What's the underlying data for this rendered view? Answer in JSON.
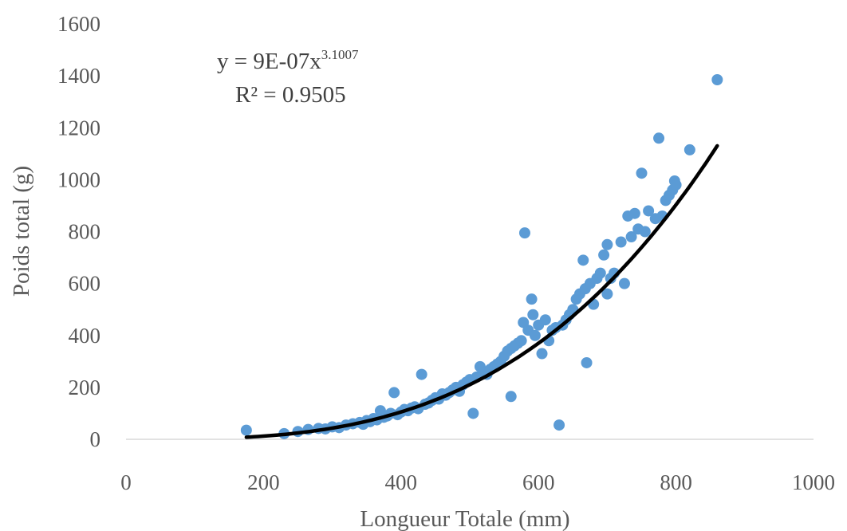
{
  "chart_data": {
    "type": "scatter",
    "title": "",
    "xlabel": "Longueur  Totale (mm)",
    "ylabel": "Poids total (g)",
    "xlim": [
      0,
      1000
    ],
    "ylim": [
      0,
      1600
    ],
    "xticks": [
      0,
      200,
      400,
      600,
      800,
      1000
    ],
    "yticks": [
      0,
      200,
      400,
      600,
      800,
      1000,
      1200,
      1400,
      1600
    ],
    "grid": false,
    "marker_color": "#5B9BD5",
    "trend_color": "#000000",
    "axis_color": "#D9D9D9",
    "trendline": {
      "type": "power",
      "coefficient": 9e-07,
      "exponent": 3.1007,
      "x_range": [
        175,
        860
      ],
      "equation_main": "y = 9E-07x",
      "equation_exponent": "3.1007",
      "r2_label": "R² = 0.9505"
    },
    "points": [
      [
        175,
        35
      ],
      [
        230,
        22
      ],
      [
        250,
        30
      ],
      [
        265,
        38
      ],
      [
        280,
        42
      ],
      [
        290,
        40
      ],
      [
        300,
        48
      ],
      [
        310,
        45
      ],
      [
        320,
        55
      ],
      [
        330,
        60
      ],
      [
        340,
        65
      ],
      [
        345,
        58
      ],
      [
        350,
        72
      ],
      [
        355,
        68
      ],
      [
        360,
        80
      ],
      [
        365,
        75
      ],
      [
        370,
        110
      ],
      [
        375,
        85
      ],
      [
        380,
        90
      ],
      [
        385,
        100
      ],
      [
        390,
        180
      ],
      [
        395,
        95
      ],
      [
        400,
        105
      ],
      [
        405,
        115
      ],
      [
        410,
        110
      ],
      [
        415,
        120
      ],
      [
        420,
        125
      ],
      [
        425,
        118
      ],
      [
        430,
        250
      ],
      [
        435,
        135
      ],
      [
        440,
        140
      ],
      [
        445,
        150
      ],
      [
        450,
        160
      ],
      [
        455,
        155
      ],
      [
        460,
        175
      ],
      [
        465,
        170
      ],
      [
        470,
        180
      ],
      [
        475,
        190
      ],
      [
        480,
        200
      ],
      [
        485,
        185
      ],
      [
        490,
        210
      ],
      [
        495,
        220
      ],
      [
        500,
        230
      ],
      [
        505,
        100
      ],
      [
        510,
        240
      ],
      [
        515,
        280
      ],
      [
        520,
        260
      ],
      [
        525,
        250
      ],
      [
        530,
        270
      ],
      [
        535,
        280
      ],
      [
        540,
        290
      ],
      [
        545,
        300
      ],
      [
        550,
        320
      ],
      [
        555,
        340
      ],
      [
        560,
        165
      ],
      [
        560,
        350
      ],
      [
        565,
        360
      ],
      [
        570,
        370
      ],
      [
        575,
        380
      ],
      [
        578,
        450
      ],
      [
        580,
        795
      ],
      [
        585,
        420
      ],
      [
        590,
        540
      ],
      [
        592,
        480
      ],
      [
        595,
        400
      ],
      [
        600,
        440
      ],
      [
        605,
        330
      ],
      [
        610,
        460
      ],
      [
        615,
        380
      ],
      [
        620,
        420
      ],
      [
        625,
        430
      ],
      [
        630,
        55
      ],
      [
        635,
        440
      ],
      [
        640,
        460
      ],
      [
        645,
        480
      ],
      [
        650,
        500
      ],
      [
        655,
        540
      ],
      [
        660,
        560
      ],
      [
        665,
        690
      ],
      [
        668,
        580
      ],
      [
        670,
        295
      ],
      [
        675,
        600
      ],
      [
        680,
        520
      ],
      [
        685,
        620
      ],
      [
        690,
        640
      ],
      [
        695,
        710
      ],
      [
        700,
        560
      ],
      [
        700,
        750
      ],
      [
        705,
        620
      ],
      [
        710,
        640
      ],
      [
        720,
        760
      ],
      [
        725,
        600
      ],
      [
        730,
        860
      ],
      [
        735,
        780
      ],
      [
        740,
        870
      ],
      [
        745,
        810
      ],
      [
        750,
        1025
      ],
      [
        755,
        800
      ],
      [
        760,
        880
      ],
      [
        770,
        850
      ],
      [
        775,
        1160
      ],
      [
        780,
        860
      ],
      [
        785,
        920
      ],
      [
        790,
        940
      ],
      [
        795,
        960
      ],
      [
        798,
        995
      ],
      [
        800,
        980
      ],
      [
        820,
        1115
      ],
      [
        860,
        1385
      ]
    ]
  }
}
